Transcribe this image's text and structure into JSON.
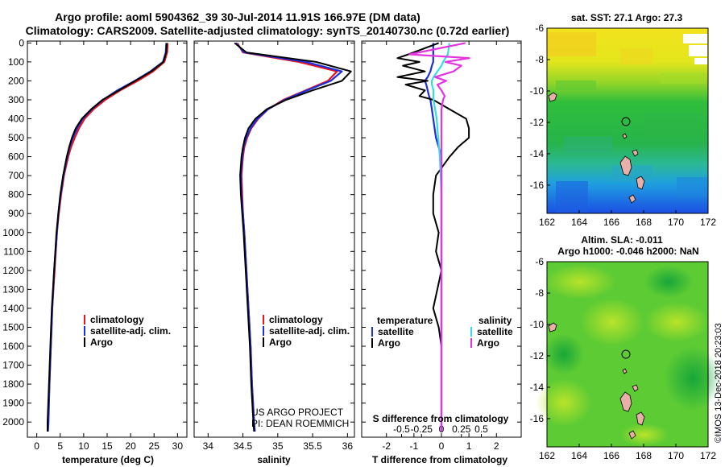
{
  "title_line1": "Argo profile: aoml 5904362_39 30-Jul-2014 11.91S 166.97E (DM data)",
  "title_line2": "Climatology: CARS2009. Satellite-adjusted climatology: synTS_20140730.nc (0.72d earlier)",
  "credits": {
    "project": "US ARGO PROJECT",
    "pi": "PI: DEAN ROEMMICH",
    "imos": "©IMOS 13-Dec-2018 20:23:03"
  },
  "colors": {
    "climatology": "#e8141e",
    "satellite": "#1c2ee0",
    "argo": "#000000",
    "sat_salinity": "#33dde6",
    "argo_salinity": "#e633e0"
  },
  "depth_ticks": [
    "0",
    "100",
    "200",
    "300",
    "400",
    "500",
    "600",
    "700",
    "800",
    "900",
    "1000",
    "1100",
    "1200",
    "1300",
    "1400",
    "1500",
    "1600",
    "1700",
    "1800",
    "1900",
    "2000"
  ],
  "chart_data": [
    {
      "type": "line",
      "id": "temperature",
      "xlabel": "temperature (deg C)",
      "ylabel": "",
      "xlim": [
        -2,
        32
      ],
      "ylim": [
        2080,
        -10
      ],
      "xticks": [
        "0",
        "5",
        "10",
        "15",
        "20",
        "25",
        "30"
      ],
      "legend": [
        "climatology",
        "satellite-adj. clim.",
        "Argo"
      ],
      "depth": [
        0,
        50,
        100,
        150,
        200,
        250,
        300,
        350,
        400,
        450,
        500,
        550,
        600,
        700,
        800,
        900,
        1000,
        1200,
        1400,
        1600,
        1800,
        2000,
        2050
      ],
      "series": [
        {
          "name": "climatology",
          "values": [
            27.9,
            27.8,
            27.2,
            24.8,
            21.5,
            17.8,
            14.6,
            12.1,
            10.2,
            9.0,
            8.1,
            7.3,
            6.7,
            5.8,
            5.2,
            4.7,
            4.3,
            3.8,
            3.3,
            3.0,
            2.7,
            2.4,
            2.3
          ]
        },
        {
          "name": "satellite-adj. clim.",
          "values": [
            27.6,
            27.5,
            26.9,
            24.2,
            20.9,
            17.2,
            14.1,
            11.7,
            9.8,
            8.6,
            7.7,
            7.0,
            6.5,
            5.7,
            5.1,
            4.6,
            4.3,
            3.7,
            3.3,
            3.0,
            2.7,
            2.5,
            2.4
          ]
        },
        {
          "name": "Argo",
          "values": [
            27.7,
            27.6,
            27.0,
            24.4,
            21.0,
            17.5,
            14.0,
            11.6,
            9.6,
            8.3,
            7.5,
            6.9,
            6.4,
            5.6,
            5.0,
            4.6,
            4.2,
            3.7,
            3.2,
            2.9,
            2.6,
            2.3,
            2.3
          ]
        }
      ]
    },
    {
      "type": "line",
      "id": "salinity",
      "xlabel": "salinity",
      "ylabel": "",
      "xlim": [
        33.8,
        36.1
      ],
      "ylim": [
        2080,
        -10
      ],
      "xticks": [
        "34",
        "34.5",
        "35",
        "35.5",
        "36"
      ],
      "legend": [
        "climatology",
        "satellite-adj. clim.",
        "Argo"
      ],
      "depth": [
        0,
        50,
        100,
        150,
        200,
        250,
        300,
        350,
        400,
        450,
        500,
        550,
        600,
        700,
        800,
        900,
        1000,
        1200,
        1400,
        1600,
        1800,
        2000,
        2050
      ],
      "series": [
        {
          "name": "climatology",
          "values": [
            34.42,
            34.5,
            35.3,
            35.85,
            35.72,
            35.4,
            35.08,
            34.86,
            34.72,
            34.62,
            34.56,
            34.52,
            34.5,
            34.48,
            34.49,
            34.5,
            34.52,
            34.55,
            34.58,
            34.61,
            34.63,
            34.66,
            34.67
          ]
        },
        {
          "name": "satellite-adj. clim.",
          "values": [
            34.4,
            34.52,
            35.4,
            35.92,
            35.76,
            35.42,
            35.1,
            34.86,
            34.71,
            34.61,
            34.55,
            34.51,
            34.49,
            34.47,
            34.48,
            34.5,
            34.52,
            34.55,
            34.58,
            34.61,
            34.63,
            34.66,
            34.67
          ]
        },
        {
          "name": "Argo",
          "values": [
            34.38,
            34.55,
            35.55,
            36.05,
            35.92,
            35.5,
            35.12,
            34.84,
            34.68,
            34.58,
            34.53,
            34.5,
            34.48,
            34.46,
            34.47,
            34.49,
            34.51,
            34.54,
            34.57,
            34.6,
            34.62,
            34.65,
            34.66
          ]
        }
      ]
    },
    {
      "type": "line",
      "id": "difference",
      "xlabel": "T difference from climatology",
      "xlabel_top": "S difference from climatology",
      "xlim": [
        -2.9,
        2.9
      ],
      "ylim": [
        2080,
        -10
      ],
      "xticks": [
        "-2",
        "-1",
        "0",
        "1",
        "2"
      ],
      "sticks": [
        "-0.5",
        "-0.25",
        "0",
        "0.25",
        "0.5"
      ],
      "legend_left_title": "temperature",
      "legend_right_title": "salinity",
      "legend_left": [
        "satellite",
        "Argo"
      ],
      "legend_right": [
        "satellite",
        "Argo"
      ],
      "depth": [
        0,
        60,
        80,
        100,
        120,
        150,
        180,
        200,
        220,
        250,
        280,
        300,
        350,
        400,
        450,
        500,
        550,
        600,
        700,
        800,
        900,
        1000,
        1100,
        1200,
        1300,
        1400,
        1500,
        1600,
        1800,
        2000,
        2050
      ],
      "series": [
        {
          "name": "temperature satellite",
          "values": [
            -0.3,
            -0.3,
            -0.3,
            -0.3,
            -0.35,
            -0.4,
            -0.5,
            -0.6,
            -0.55,
            -0.5,
            -0.45,
            -0.4,
            -0.35,
            -0.3,
            -0.25,
            -0.2,
            -0.1,
            0.0,
            0.0,
            0.0,
            0.0,
            0.0,
            0.0,
            0.0,
            0.0,
            0.0,
            0.0,
            0.0,
            0.0,
            0.0,
            0.0
          ]
        },
        {
          "name": "temperature Argo",
          "values": [
            -0.1,
            -1.2,
            -1.6,
            -0.8,
            -1.4,
            -0.6,
            -1.6,
            -0.5,
            -1.3,
            -0.6,
            -0.8,
            -0.3,
            0.3,
            0.9,
            1.0,
            1.0,
            0.6,
            0.3,
            -0.2,
            -0.3,
            -0.3,
            -0.1,
            -0.2,
            0.0,
            -0.15,
            -0.3,
            -0.1,
            0.0,
            0.0,
            0.0,
            0.0
          ]
        },
        {
          "name": "salinity satellite",
          "values": [
            0.1,
            0.08,
            0.05,
            0.02,
            0.0,
            -0.05,
            -0.1,
            -0.12,
            -0.12,
            -0.1,
            -0.1,
            -0.1,
            -0.08,
            -0.06,
            -0.05,
            -0.04,
            -0.03,
            -0.02,
            -0.01,
            0.0,
            0.0,
            0.0,
            0.0,
            0.0,
            0.0,
            0.0,
            0.0,
            0.0,
            0.0,
            0.0,
            0.0
          ]
        },
        {
          "name": "salinity Argo",
          "values": [
            0.3,
            -0.4,
            0.35,
            0.05,
            0.25,
            0.15,
            -0.08,
            0.06,
            -0.05,
            0.0,
            0.04,
            0.02,
            0.0,
            0.0,
            0.0,
            0.0,
            0.0,
            0.0,
            0.0,
            0.0,
            0.0,
            0.0,
            0.0,
            0.0,
            0.0,
            0.0,
            0.0,
            0.0,
            0.0,
            0.0,
            0.0
          ]
        }
      ]
    },
    {
      "type": "heatmap",
      "id": "sst_map",
      "title": "sat. SST: 27.1 Argo: 27.3",
      "xlim": [
        162,
        172
      ],
      "ylim": [
        -17.8,
        -6
      ],
      "xticks": [
        "162",
        "164",
        "166",
        "168",
        "170",
        "172"
      ],
      "yticks": [
        "-6",
        "-8",
        "-10",
        "-12",
        "-14",
        "-16"
      ],
      "profile_location": {
        "lon": 166.97,
        "lat": -11.91
      }
    },
    {
      "type": "heatmap",
      "id": "sla_map",
      "title": "Altim. SLA: -0.011",
      "subtitle": "Argo h1000: -0.046 h2000: NaN",
      "xlim": [
        162,
        172
      ],
      "ylim": [
        -17.8,
        -6
      ],
      "xticks": [
        "162",
        "164",
        "166",
        "168",
        "170",
        "172"
      ],
      "yticks": [
        "-6",
        "-8",
        "-10",
        "-12",
        "-14",
        "-16"
      ],
      "profile_location": {
        "lon": 166.97,
        "lat": -11.91
      }
    }
  ]
}
